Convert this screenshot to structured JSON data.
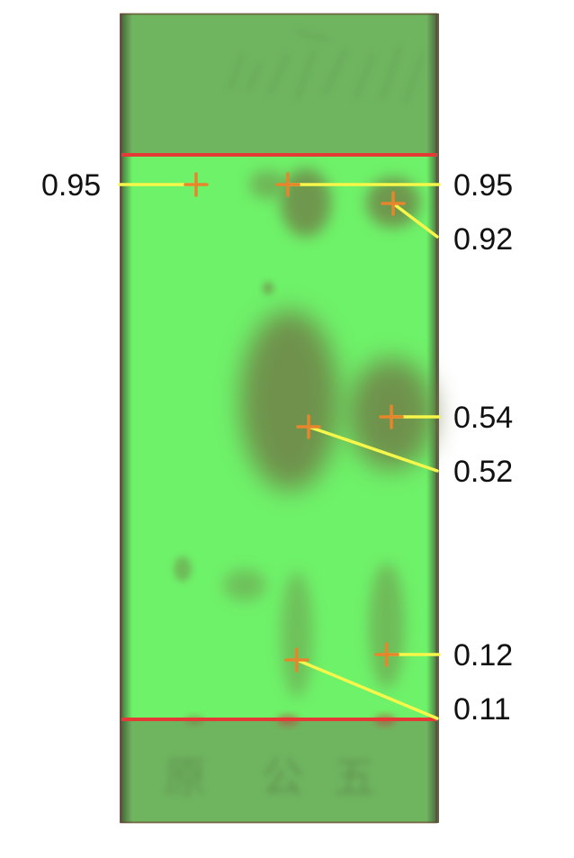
{
  "plate": {
    "colors": {
      "background_zone": "#76c576",
      "plate_band": "#6fbb5f",
      "plate_green": "#6ef26a",
      "edge_dark": "#4a5a3a",
      "red_line": "#e53935",
      "spot": "#6f7a45",
      "marker_line": "#f7f64a",
      "marker_cross": "#e5862d"
    },
    "handwriting": [
      "原",
      "公",
      "五"
    ]
  },
  "labels": {
    "left_top": "0.95",
    "right": [
      "0.95",
      "0.92",
      "0.54",
      "0.52",
      "0.12",
      "0.11"
    ]
  }
}
